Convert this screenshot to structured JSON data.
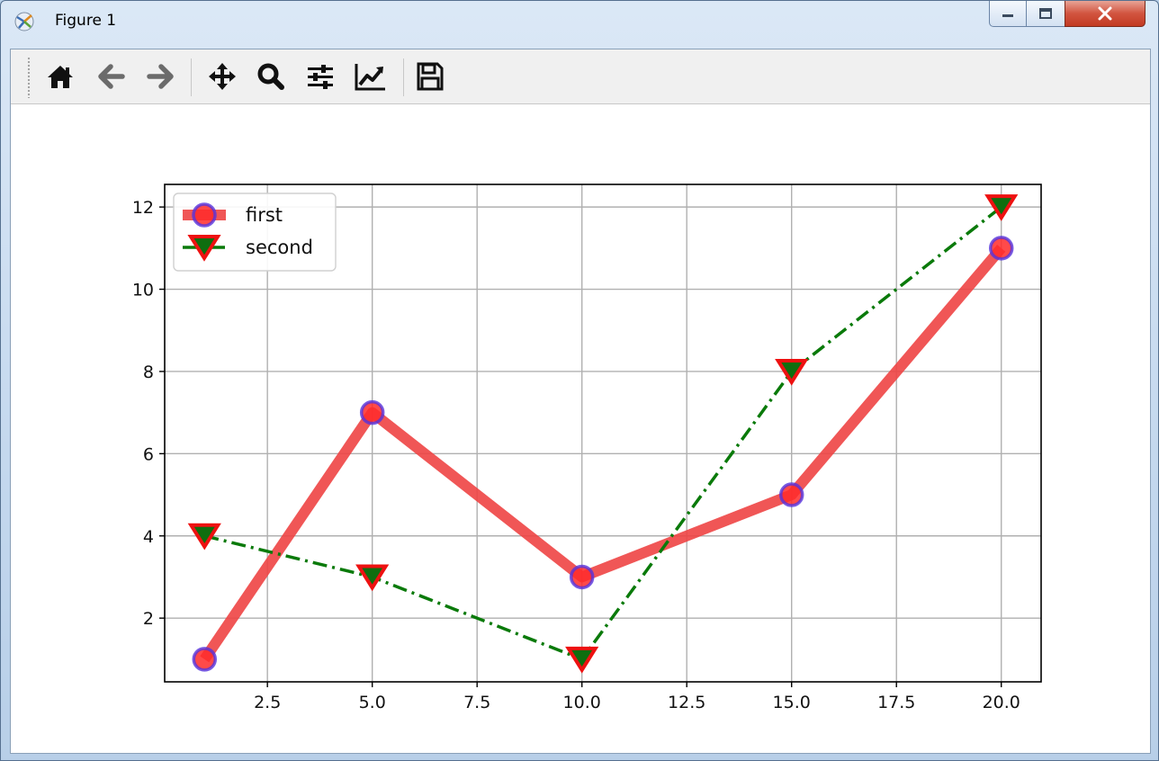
{
  "window": {
    "title": "Figure 1",
    "controls": [
      "minimize",
      "maximize",
      "close"
    ]
  },
  "toolbar": {
    "buttons": [
      {
        "name": "home",
        "icon": "home-icon"
      },
      {
        "name": "back",
        "icon": "arrow-left-icon"
      },
      {
        "name": "forward",
        "icon": "arrow-right-icon"
      },
      {
        "name": "pan",
        "icon": "move-icon"
      },
      {
        "name": "zoom",
        "icon": "magnifier-icon"
      },
      {
        "name": "configure-subplots",
        "icon": "sliders-icon"
      },
      {
        "name": "edit-axis",
        "icon": "line-chart-icon"
      },
      {
        "name": "save",
        "icon": "floppy-disk-icon"
      }
    ]
  },
  "chart_data": {
    "type": "line",
    "title": "",
    "xlabel": "",
    "ylabel": "",
    "xlim": [
      0.05,
      20.95
    ],
    "ylim": [
      0.45,
      12.55
    ],
    "xticks": [
      2.5,
      5.0,
      7.5,
      10.0,
      12.5,
      15.0,
      17.5,
      20.0
    ],
    "xtick_labels": [
      "2.5",
      "5.0",
      "7.5",
      "10.0",
      "12.5",
      "15.0",
      "17.5",
      "20.0"
    ],
    "yticks": [
      2,
      4,
      6,
      8,
      10,
      12
    ],
    "ytick_labels": [
      "2",
      "4",
      "6",
      "8",
      "10",
      "12"
    ],
    "grid": true,
    "legend": "upper-left",
    "series": [
      {
        "name": "first",
        "x": [
          1,
          5,
          10,
          15,
          20
        ],
        "y": [
          1,
          7,
          3,
          5,
          11
        ],
        "line_color": "#ee4444",
        "line_style": "solid",
        "marker": "circle",
        "marker_face": "#ff2a2a",
        "marker_edge": "#5533dd"
      },
      {
        "name": "second",
        "x": [
          1,
          5,
          10,
          15,
          20
        ],
        "y": [
          4,
          3,
          1,
          8,
          12
        ],
        "line_color": "#0a7a0a",
        "line_style": "dashdot",
        "marker": "triangle-down",
        "marker_face": "#0f6e0f",
        "marker_edge": "#ee1111"
      }
    ]
  }
}
